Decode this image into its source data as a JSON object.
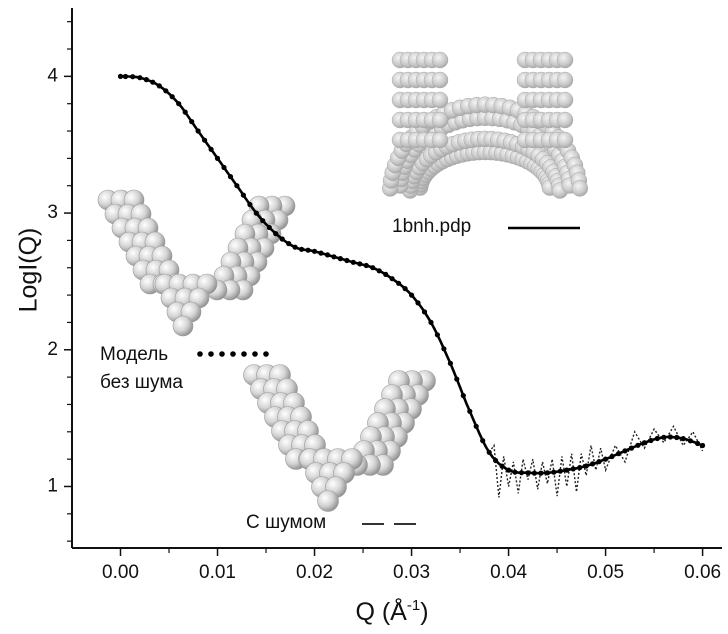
{
  "chart_data": {
    "type": "line",
    "title": "",
    "xlabel_main": "Q (Å",
    "xlabel_sup": "-1",
    "xlabel_close": ")",
    "ylabel": "LogI(Q)",
    "xlim": [
      -0.005,
      0.062
    ],
    "ylim": [
      0.55,
      4.5
    ],
    "x_ticks": [
      "0.00",
      "0.01",
      "0.02",
      "0.03",
      "0.04",
      "0.05",
      "0.06"
    ],
    "x_tick_values": [
      0.0,
      0.01,
      0.02,
      0.03,
      0.04,
      0.05,
      0.06
    ],
    "y_ticks": [
      "1",
      "2",
      "3",
      "4"
    ],
    "y_tick_values": [
      1,
      2,
      3,
      4
    ],
    "grid": false,
    "legend_position": "inline",
    "series": [
      {
        "name": "1bnh.pdp",
        "style": "solid",
        "color": "#000000",
        "x": [
          0.0,
          0.002,
          0.004,
          0.006,
          0.008,
          0.01,
          0.012,
          0.014,
          0.016,
          0.018,
          0.02,
          0.022,
          0.024,
          0.026,
          0.028,
          0.03,
          0.032,
          0.034,
          0.036,
          0.038,
          0.04,
          0.042,
          0.044,
          0.046,
          0.048,
          0.05,
          0.052,
          0.054,
          0.056,
          0.058,
          0.06
        ],
        "values": [
          4.0,
          3.99,
          3.93,
          3.8,
          3.6,
          3.4,
          3.2,
          3.0,
          2.85,
          2.75,
          2.72,
          2.68,
          2.64,
          2.6,
          2.52,
          2.4,
          2.2,
          1.9,
          1.55,
          1.25,
          1.12,
          1.1,
          1.1,
          1.12,
          1.15,
          1.2,
          1.26,
          1.32,
          1.36,
          1.35,
          1.3
        ]
      },
      {
        "name": "Модель без шума",
        "legend_lines": [
          "Модель",
          "без шума"
        ],
        "style": "dots",
        "color": "#000000",
        "x": [
          0.0,
          0.002,
          0.004,
          0.006,
          0.008,
          0.01,
          0.012,
          0.014,
          0.016,
          0.018,
          0.02,
          0.022,
          0.024,
          0.026,
          0.028,
          0.03,
          0.032,
          0.034,
          0.036,
          0.038,
          0.04,
          0.042,
          0.044,
          0.046,
          0.048,
          0.05,
          0.052,
          0.054,
          0.056,
          0.058,
          0.06
        ],
        "values": [
          4.0,
          3.99,
          3.93,
          3.8,
          3.6,
          3.4,
          3.2,
          3.0,
          2.85,
          2.75,
          2.72,
          2.68,
          2.64,
          2.6,
          2.52,
          2.4,
          2.2,
          1.9,
          1.55,
          1.25,
          1.12,
          1.1,
          1.1,
          1.12,
          1.15,
          1.2,
          1.26,
          1.32,
          1.36,
          1.35,
          1.3
        ]
      },
      {
        "name": "С шумом",
        "style": "dashed",
        "color": "#000000",
        "x": [
          0.038,
          0.0385,
          0.039,
          0.0395,
          0.04,
          0.0405,
          0.041,
          0.0415,
          0.042,
          0.0425,
          0.043,
          0.0435,
          0.044,
          0.0445,
          0.045,
          0.0455,
          0.046,
          0.0465,
          0.047,
          0.0475,
          0.048,
          0.0485,
          0.049,
          0.0495,
          0.05,
          0.051,
          0.052,
          0.053,
          0.054,
          0.055,
          0.056,
          0.057,
          0.058,
          0.059,
          0.06
        ],
        "values": [
          1.25,
          1.3,
          0.92,
          1.22,
          1.0,
          1.18,
          0.95,
          1.2,
          1.05,
          1.2,
          0.98,
          1.18,
          1.02,
          1.2,
          0.93,
          1.22,
          1.0,
          1.24,
          0.96,
          1.24,
          1.08,
          1.3,
          1.12,
          1.28,
          1.12,
          1.3,
          1.18,
          1.4,
          1.28,
          1.42,
          1.32,
          1.44,
          1.3,
          1.4,
          1.26
        ]
      }
    ],
    "annotations": {
      "model_label": "1bnh.pdp",
      "noise_label": "С шумом"
    }
  }
}
